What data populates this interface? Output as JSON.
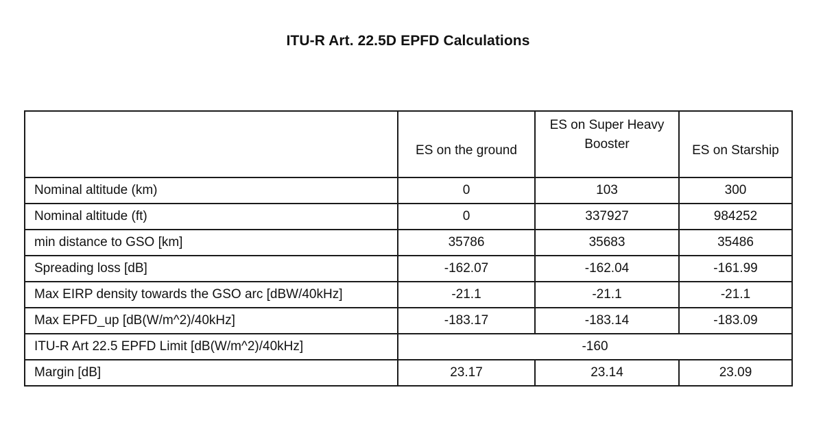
{
  "title": "ITU-R Art. 22.5D EPFD Calculations",
  "table": {
    "headers": [
      "",
      "ES on the ground",
      "ES on Super Heavy Booster",
      "ES on Starship"
    ],
    "rows": [
      {
        "label": "Nominal altitude (km)",
        "values": [
          "0",
          "103",
          "300"
        ]
      },
      {
        "label": "Nominal altitude (ft)",
        "values": [
          "0",
          "337927",
          "984252"
        ]
      },
      {
        "label": "min distance to GSO [km]",
        "values": [
          "35786",
          "35683",
          "35486"
        ]
      },
      {
        "label": "Spreading loss [dB]",
        "values": [
          "-162.07",
          "-162.04",
          "-161.99"
        ]
      },
      {
        "label": "Max EIRP density towards the GSO arc [dBW/40kHz]",
        "values": [
          "-21.1",
          "-21.1",
          "-21.1"
        ]
      },
      {
        "label": "Max EPFD_up [dB(W/m^2)/40kHz]",
        "values": [
          "-183.17",
          "-183.14",
          "-183.09"
        ]
      }
    ],
    "limit_row": {
      "label": "ITU-R Art 22.5 EPFD Limit [dB(W/m^2)/40kHz]",
      "value": "-160"
    },
    "margin_row": {
      "label": "Margin [dB]",
      "values": [
        "23.17",
        "23.14",
        "23.09"
      ]
    }
  }
}
